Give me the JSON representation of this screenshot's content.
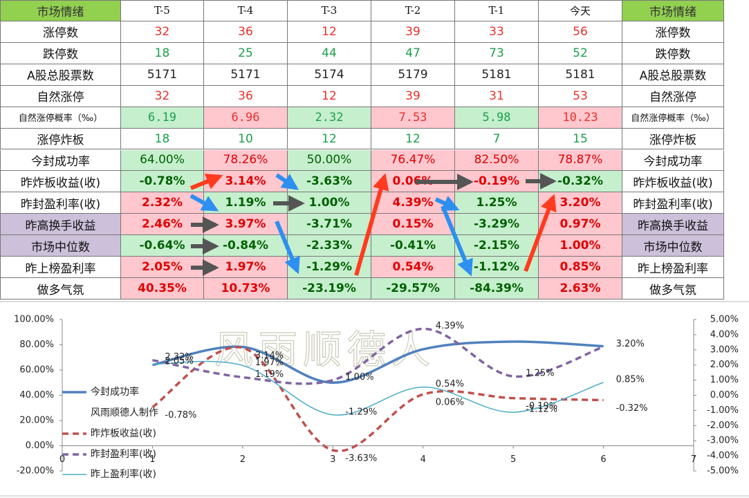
{
  "table": {
    "rows": [
      [
        "市场情绪",
        "T-5",
        "T-4",
        "T-3",
        "T-2",
        "T-1",
        "今天",
        "市场情绪"
      ],
      [
        "涨停数",
        "32",
        "36",
        "12",
        "39",
        "33",
        "56",
        "涨停数"
      ],
      [
        "跌停数",
        "18",
        "25",
        "44",
        "47",
        "73",
        "52",
        "跌停数"
      ],
      [
        "A股总股票数",
        "5171",
        "5171",
        "5174",
        "5179",
        "5181",
        "5181",
        "A股总股票数"
      ],
      [
        "自然涨停",
        "32",
        "36",
        "12",
        "39",
        "31",
        "53",
        "自然涨停"
      ],
      [
        "自然涨停概率（‰）",
        "6.19",
        "6.96",
        "2.32",
        "7.53",
        "5.98",
        "10.23",
        "自然涨停概率（‰）"
      ],
      [
        "涨停炸板",
        "18",
        "10",
        "12",
        "12",
        "7",
        "15",
        "涨停炸板"
      ],
      [
        "今封成功率",
        "64.00%",
        "78.26%",
        "50.00%",
        "76.47%",
        "82.50%",
        "78.87%",
        "今封成功率"
      ],
      [
        "昨炸板收益(收)",
        "-0.78%",
        "3.14%",
        "-3.63%",
        "0.06%",
        "-0.19%",
        "-0.32%",
        "昨炸板收益(收)"
      ],
      [
        "昨封盈利率(收)",
        "2.32%",
        "1.19%",
        "1.00%",
        "4.39%",
        "1.25%",
        "3.20%",
        "昨封盈利率(收)"
      ],
      [
        "昨高换手收益",
        "2.46%",
        "3.97%",
        "-3.71%",
        "0.15%",
        "-3.29%",
        "0.97%",
        "昨高换手收益"
      ],
      [
        "市场中位数",
        "-0.64%",
        "-0.84%",
        "-2.33%",
        "-0.41%",
        "-2.15%",
        "1.00%",
        "市场中位数"
      ],
      [
        "昨上榜盈利率",
        "2.05%",
        "1.97%",
        "-1.29%",
        "0.54%",
        "-1.12%",
        "0.85%",
        "昨上榜盈利率"
      ],
      [
        "做多气氛",
        "40.35%",
        "10.73%",
        "-23.19%",
        "-29.57%",
        "-84.39%",
        "2.63%",
        "做多气氛"
      ]
    ]
  },
  "chart_data": {
    "type": "line",
    "watermark": "风雨顺德人",
    "legend_note": "风雨顺德人制作",
    "x": [
      1,
      2,
      3,
      4,
      5,
      6
    ],
    "xlim": [
      0,
      7
    ],
    "xticks": [
      0,
      1,
      2,
      3,
      4,
      5,
      6,
      7
    ],
    "ylim": [
      -20,
      100
    ],
    "yticks": [
      {
        "value": -20,
        "label": "-20.00%"
      },
      {
        "value": 0,
        "label": "0.00%"
      },
      {
        "value": 20,
        "label": "20.00%"
      },
      {
        "value": 40,
        "label": "40.00%"
      },
      {
        "value": 60,
        "label": "60.00%"
      },
      {
        "value": 80,
        "label": "80.00%"
      },
      {
        "value": 100,
        "label": "100.00%"
      }
    ],
    "y2lim": [
      -5,
      5
    ],
    "y2ticks": [
      {
        "value": -5,
        "label": "-5.00%"
      },
      {
        "value": -4,
        "label": "-4.00%"
      },
      {
        "value": -3,
        "label": "-3.00%"
      },
      {
        "value": -2,
        "label": "-2.00%"
      },
      {
        "value": -1,
        "label": "-1.00%"
      },
      {
        "value": 0,
        "label": "0.00%"
      },
      {
        "value": 1,
        "label": "1.00%"
      },
      {
        "value": 2,
        "label": "2.00%"
      },
      {
        "value": 3,
        "label": "3.00%"
      },
      {
        "value": 4,
        "label": "4.00%"
      },
      {
        "value": 5,
        "label": "5.00%"
      }
    ],
    "series": [
      {
        "name": "今封成功率",
        "color": "#4f81bd",
        "width": 3.5,
        "dash": "",
        "values": [
          64.0,
          78.26,
          50.0,
          76.47,
          82.5,
          78.87
        ]
      },
      {
        "name": "昨炸板收益(收)",
        "color": "#c0504d",
        "width": 3.5,
        "dash": "9 6",
        "axis": "y2",
        "values": [
          -0.78,
          3.14,
          -3.63,
          0.06,
          -0.19,
          -0.32
        ],
        "value_labels": [
          "-0.78%",
          "3.14%",
          "-3.63%",
          "0.06%",
          "-0.19%",
          "-0.32%"
        ]
      },
      {
        "name": "昨封盈利率(收)",
        "color": "#8064a2",
        "width": 3.5,
        "dash": "9 6",
        "axis": "y2",
        "values": [
          2.32,
          1.19,
          1.0,
          4.39,
          1.25,
          3.2
        ],
        "value_labels": [
          "2.32%",
          "1.19%",
          "1.00%",
          "4.39%",
          "1.25%",
          "3.20%"
        ]
      },
      {
        "name": "昨上盈利率(收)",
        "color": "#4bacc6",
        "width": 1.5,
        "dash": "",
        "axis": "y2",
        "values": [
          2.05,
          1.97,
          -1.29,
          0.54,
          -1.12,
          0.85
        ],
        "value_labels": [
          "2.05%",
          "1.97%",
          "-1.29%",
          "0.54%",
          "-1.12%",
          "0.85%"
        ]
      }
    ]
  }
}
